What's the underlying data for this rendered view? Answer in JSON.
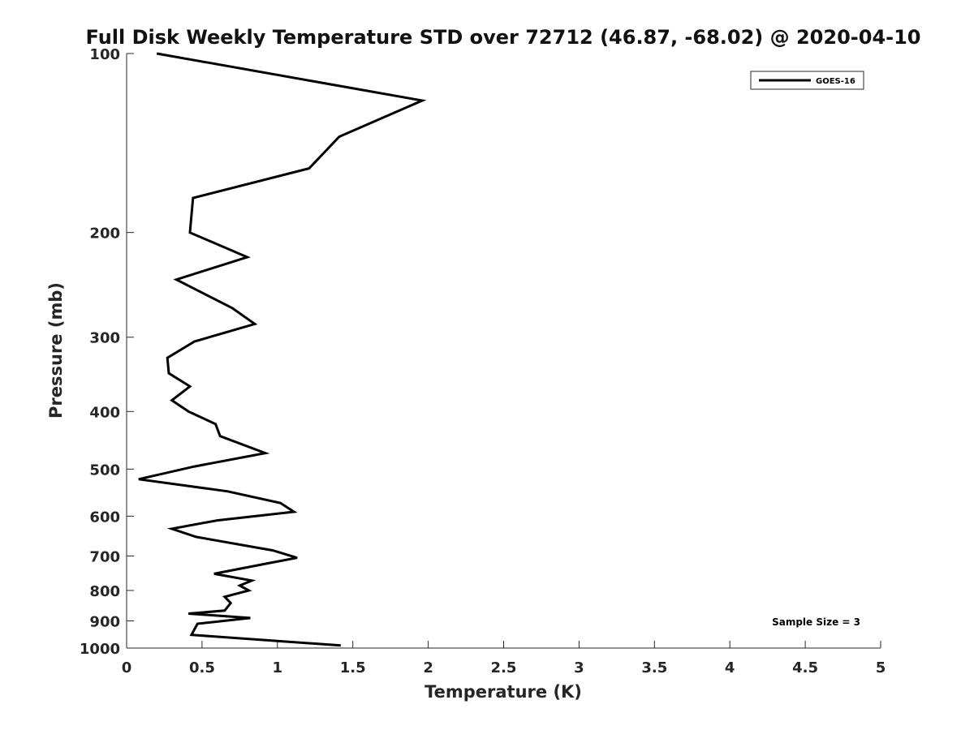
{
  "chart_data": {
    "type": "line",
    "title": "Full Disk Weekly Temperature STD over 72712 (46.87, -68.02) @ 2020-04-10",
    "xlabel": "Temperature (K)",
    "ylabel": "Pressure (mb)",
    "xlim": [
      0,
      5
    ],
    "ylim": [
      100,
      1000
    ],
    "y_scale": "log",
    "y_reversed": true,
    "x_ticks": [
      "0",
      "0.5",
      "1",
      "1.5",
      "2",
      "2.5",
      "3",
      "3.5",
      "4",
      "4.5",
      "5"
    ],
    "y_ticks": [
      "100",
      "200",
      "300",
      "400",
      "500",
      "600",
      "700",
      "800",
      "900",
      "1000"
    ],
    "grid": false,
    "legend_position": "top-right",
    "annotation": "Sample Size = 3",
    "series": [
      {
        "name": "GOES-16",
        "color": "#000000",
        "x": [
          0.2,
          1.96,
          1.41,
          1.21,
          0.44,
          0.42,
          0.8,
          0.33,
          0.7,
          0.85,
          0.45,
          0.27,
          0.28,
          0.42,
          0.3,
          0.41,
          0.59,
          0.62,
          0.92,
          0.45,
          0.08,
          0.67,
          1.02,
          1.11,
          0.6,
          0.3,
          0.46,
          0.97,
          1.13,
          0.94,
          0.58,
          0.83,
          0.75,
          0.81,
          0.65,
          0.69,
          0.65,
          0.41,
          0.82,
          0.47,
          0.43,
          1.42
        ],
        "y": [
          100,
          120,
          138,
          156,
          175,
          200,
          220,
          240,
          268,
          285,
          305,
          325,
          345,
          363,
          383,
          400,
          420,
          440,
          470,
          495,
          520,
          545,
          570,
          590,
          610,
          630,
          650,
          685,
          705,
          720,
          750,
          770,
          785,
          800,
          820,
          840,
          865,
          875,
          890,
          910,
          950,
          990
        ]
      }
    ]
  }
}
